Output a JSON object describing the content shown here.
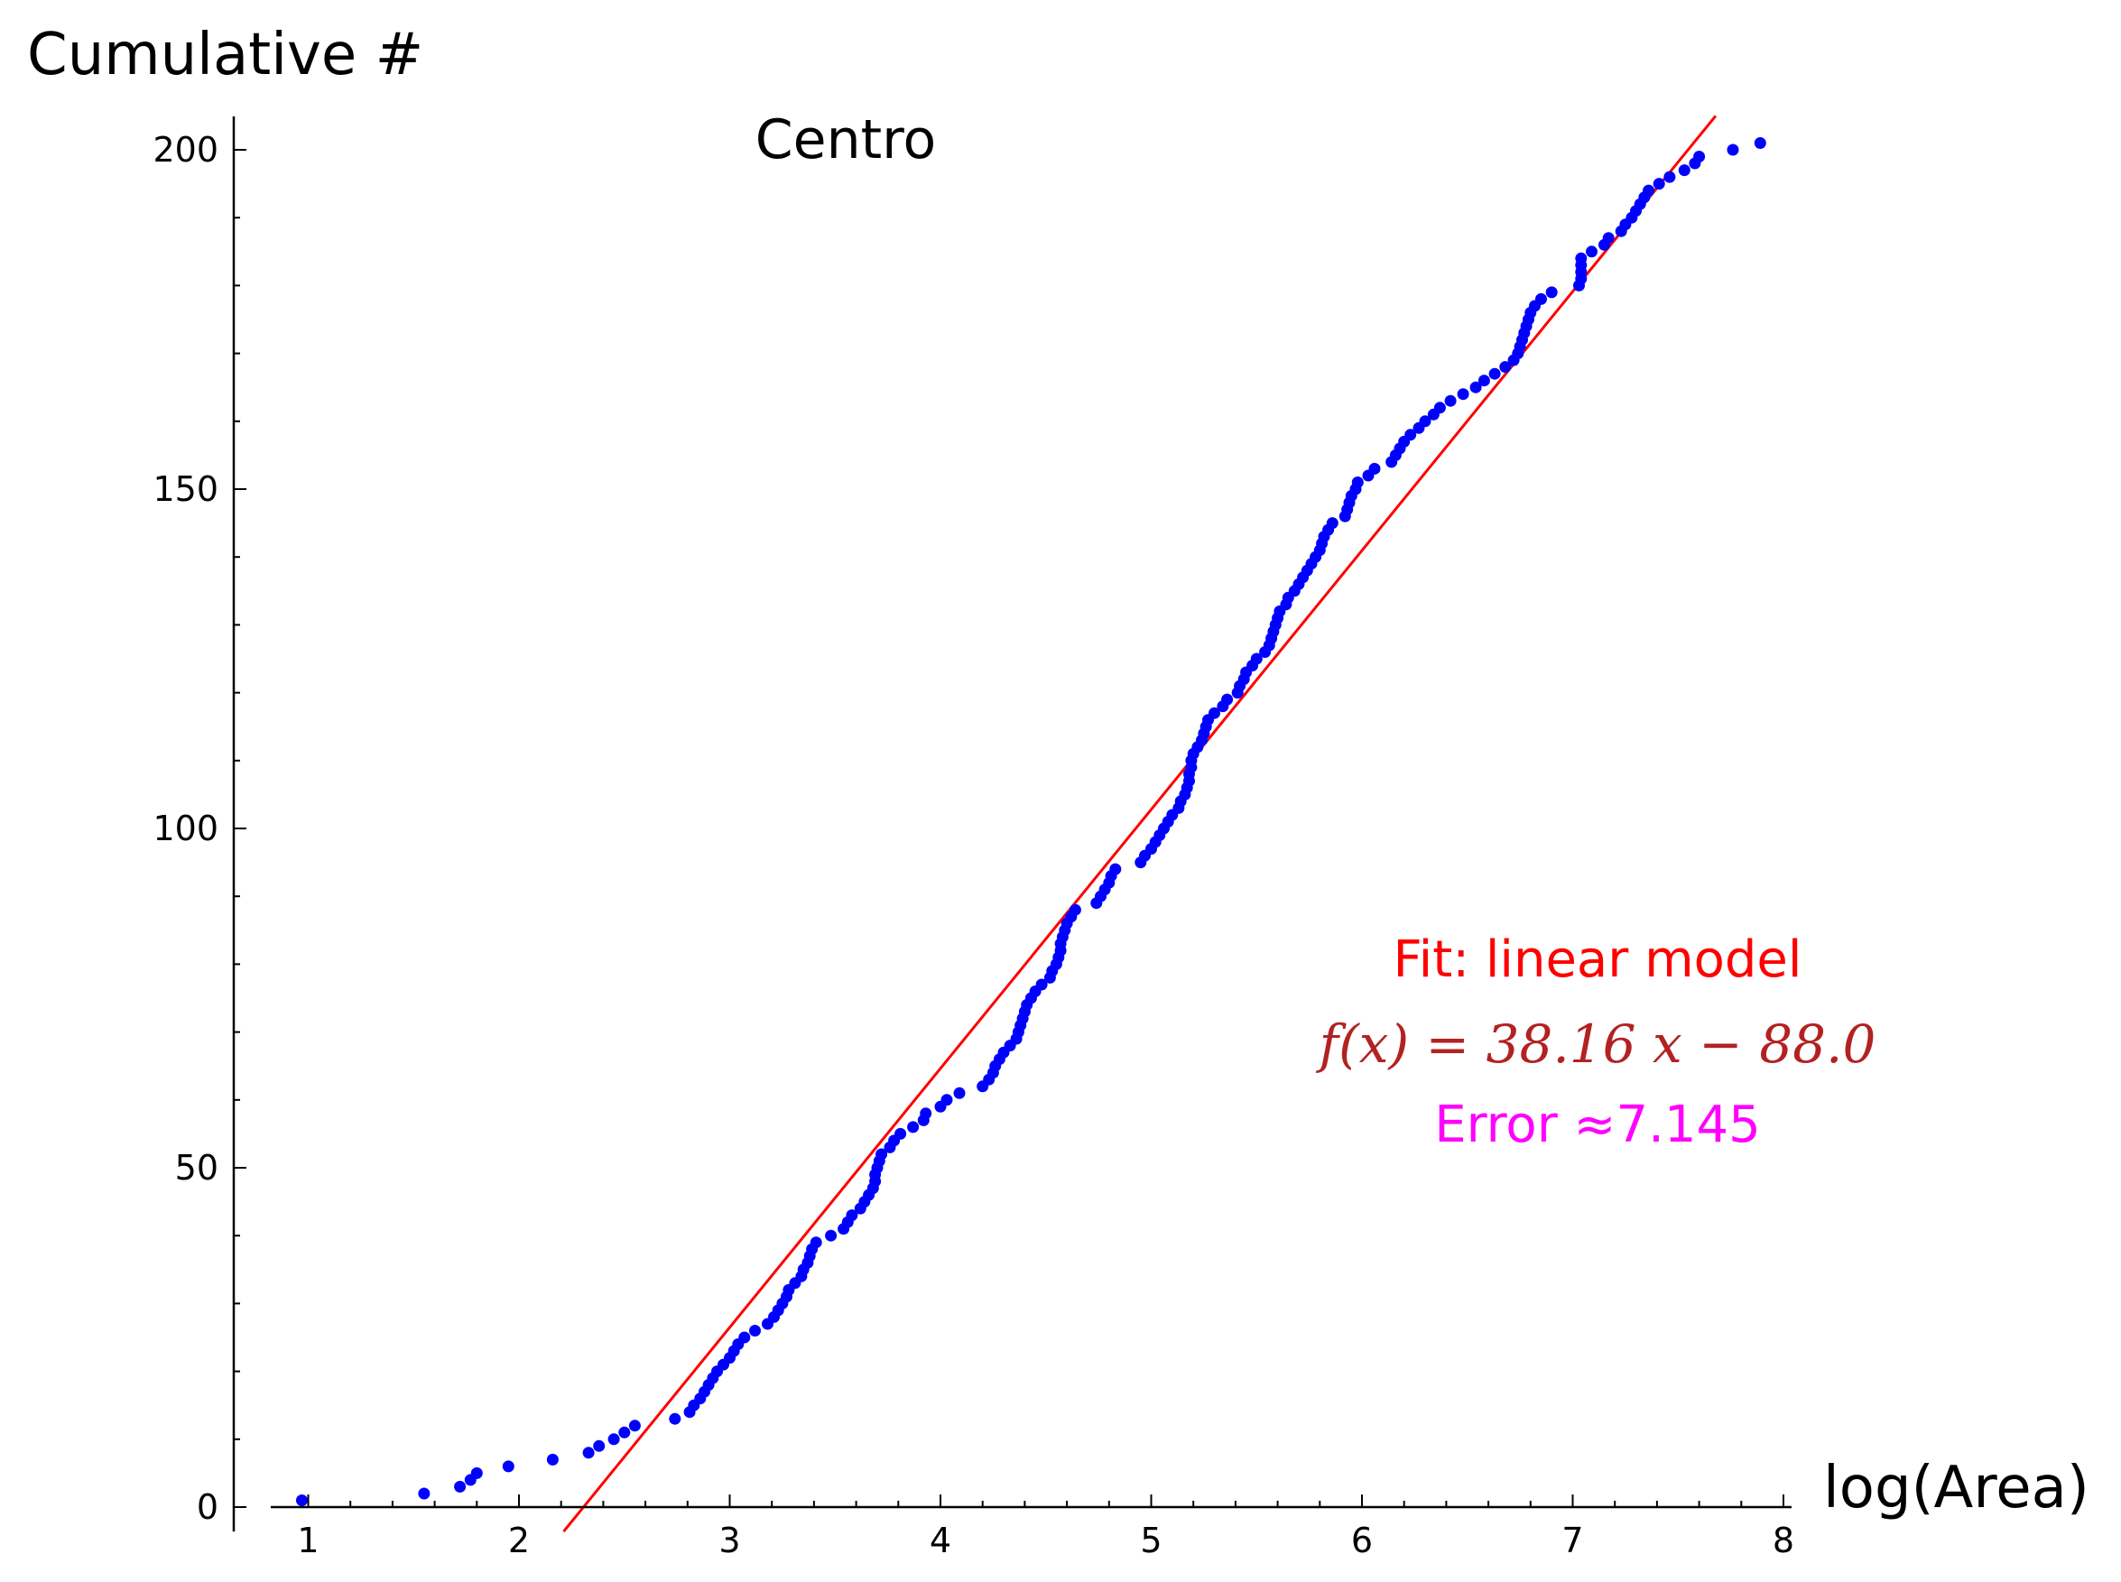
{
  "chart_data": {
    "type": "scatter",
    "title": "Centro",
    "xlabel": "log(Area)",
    "ylabel": "Cumulative #",
    "xlim": [
      0.8,
      8.05
    ],
    "ylim": [
      -3,
      205
    ],
    "x_ticks": [
      1,
      2,
      3,
      4,
      5,
      6,
      7,
      8
    ],
    "y_ticks": [
      0,
      50,
      100,
      150,
      200
    ],
    "grid": false,
    "series": [
      {
        "color": "#0000ff",
        "points": [
          [
            0.97,
            1
          ],
          [
            1.55,
            2
          ],
          [
            1.72,
            3
          ],
          [
            1.77,
            4
          ],
          [
            1.8,
            5
          ],
          [
            1.95,
            6
          ],
          [
            2.16,
            7
          ],
          [
            2.33,
            8
          ],
          [
            2.38,
            9
          ],
          [
            2.45,
            10
          ],
          [
            2.5,
            11
          ],
          [
            2.55,
            12
          ],
          [
            2.74,
            13
          ],
          [
            2.81,
            14
          ],
          [
            2.83,
            15
          ],
          [
            2.86,
            16
          ],
          [
            2.88,
            17
          ],
          [
            2.9,
            18
          ],
          [
            2.92,
            19
          ],
          [
            2.94,
            20
          ],
          [
            2.97,
            21
          ],
          [
            3.0,
            22
          ],
          [
            3.02,
            23
          ],
          [
            3.04,
            24
          ],
          [
            3.07,
            25
          ],
          [
            3.12,
            26
          ],
          [
            3.18,
            27
          ],
          [
            3.21,
            28
          ],
          [
            3.23,
            29
          ],
          [
            3.25,
            30
          ],
          [
            3.27,
            31
          ],
          [
            3.28,
            32
          ],
          [
            3.31,
            33
          ],
          [
            3.34,
            34
          ],
          [
            3.35,
            35
          ],
          [
            3.37,
            36
          ],
          [
            3.38,
            37
          ],
          [
            3.39,
            38
          ],
          [
            3.41,
            39
          ],
          [
            3.48,
            40
          ],
          [
            3.54,
            41
          ],
          [
            3.56,
            42
          ],
          [
            3.58,
            43
          ],
          [
            3.62,
            44
          ],
          [
            3.64,
            45
          ],
          [
            3.66,
            46
          ],
          [
            3.68,
            47
          ],
          [
            3.69,
            48
          ],
          [
            3.69,
            49
          ],
          [
            3.7,
            50
          ],
          [
            3.71,
            51
          ],
          [
            3.72,
            52
          ],
          [
            3.76,
            53
          ],
          [
            3.78,
            54
          ],
          [
            3.81,
            55
          ],
          [
            3.87,
            56
          ],
          [
            3.92,
            57
          ],
          [
            3.93,
            58
          ],
          [
            4.0,
            59
          ],
          [
            4.03,
            60
          ],
          [
            4.09,
            61
          ],
          [
            4.2,
            62
          ],
          [
            4.23,
            63
          ],
          [
            4.25,
            64
          ],
          [
            4.26,
            65
          ],
          [
            4.28,
            66
          ],
          [
            4.3,
            67
          ],
          [
            4.33,
            68
          ],
          [
            4.36,
            69
          ],
          [
            4.37,
            70
          ],
          [
            4.38,
            71
          ],
          [
            4.39,
            72
          ],
          [
            4.4,
            73
          ],
          [
            4.41,
            74
          ],
          [
            4.43,
            75
          ],
          [
            4.45,
            76
          ],
          [
            4.48,
            77
          ],
          [
            4.52,
            78
          ],
          [
            4.53,
            79
          ],
          [
            4.55,
            80
          ],
          [
            4.56,
            81
          ],
          [
            4.57,
            82
          ],
          [
            4.57,
            83
          ],
          [
            4.58,
            84
          ],
          [
            4.59,
            85
          ],
          [
            4.6,
            86
          ],
          [
            4.62,
            87
          ],
          [
            4.64,
            88
          ],
          [
            4.74,
            89
          ],
          [
            4.76,
            90
          ],
          [
            4.78,
            91
          ],
          [
            4.8,
            92
          ],
          [
            4.81,
            93
          ],
          [
            4.83,
            94
          ],
          [
            4.95,
            95
          ],
          [
            4.97,
            96
          ],
          [
            5.0,
            97
          ],
          [
            5.02,
            98
          ],
          [
            5.04,
            99
          ],
          [
            5.06,
            100
          ],
          [
            5.08,
            101
          ],
          [
            5.1,
            102
          ],
          [
            5.13,
            103
          ],
          [
            5.14,
            104
          ],
          [
            5.16,
            105
          ],
          [
            5.17,
            106
          ],
          [
            5.18,
            107
          ],
          [
            5.18,
            108
          ],
          [
            5.19,
            109
          ],
          [
            5.19,
            110
          ],
          [
            5.2,
            111
          ],
          [
            5.22,
            112
          ],
          [
            5.24,
            113
          ],
          [
            5.25,
            114
          ],
          [
            5.26,
            115
          ],
          [
            5.27,
            116
          ],
          [
            5.3,
            117
          ],
          [
            5.34,
            118
          ],
          [
            5.36,
            119
          ],
          [
            5.41,
            120
          ],
          [
            5.42,
            121
          ],
          [
            5.44,
            122
          ],
          [
            5.45,
            123
          ],
          [
            5.48,
            124
          ],
          [
            5.5,
            125
          ],
          [
            5.54,
            126
          ],
          [
            5.56,
            127
          ],
          [
            5.57,
            128
          ],
          [
            5.58,
            129
          ],
          [
            5.59,
            130
          ],
          [
            5.6,
            131
          ],
          [
            5.61,
            132
          ],
          [
            5.64,
            133
          ],
          [
            5.65,
            134
          ],
          [
            5.68,
            135
          ],
          [
            5.7,
            136
          ],
          [
            5.72,
            137
          ],
          [
            5.74,
            138
          ],
          [
            5.76,
            139
          ],
          [
            5.78,
            140
          ],
          [
            5.8,
            141
          ],
          [
            5.81,
            142
          ],
          [
            5.82,
            143
          ],
          [
            5.84,
            144
          ],
          [
            5.86,
            145
          ],
          [
            5.92,
            146
          ],
          [
            5.93,
            147
          ],
          [
            5.94,
            148
          ],
          [
            5.95,
            149
          ],
          [
            5.97,
            150
          ],
          [
            5.98,
            151
          ],
          [
            6.03,
            152
          ],
          [
            6.06,
            153
          ],
          [
            6.14,
            154
          ],
          [
            6.16,
            155
          ],
          [
            6.18,
            156
          ],
          [
            6.2,
            157
          ],
          [
            6.23,
            158
          ],
          [
            6.27,
            159
          ],
          [
            6.3,
            160
          ],
          [
            6.34,
            161
          ],
          [
            6.37,
            162
          ],
          [
            6.42,
            163
          ],
          [
            6.48,
            164
          ],
          [
            6.54,
            165
          ],
          [
            6.58,
            166
          ],
          [
            6.63,
            167
          ],
          [
            6.68,
            168
          ],
          [
            6.72,
            169
          ],
          [
            6.74,
            170
          ],
          [
            6.75,
            171
          ],
          [
            6.76,
            172
          ],
          [
            6.77,
            173
          ],
          [
            6.78,
            174
          ],
          [
            6.79,
            175
          ],
          [
            6.8,
            176
          ],
          [
            6.82,
            177
          ],
          [
            6.85,
            178
          ],
          [
            6.9,
            179
          ],
          [
            7.03,
            180
          ],
          [
            7.04,
            181
          ],
          [
            7.04,
            182
          ],
          [
            7.04,
            183
          ],
          [
            7.04,
            184
          ],
          [
            7.09,
            185
          ],
          [
            7.15,
            186
          ],
          [
            7.17,
            187
          ],
          [
            7.23,
            188
          ],
          [
            7.25,
            189
          ],
          [
            7.28,
            190
          ],
          [
            7.3,
            191
          ],
          [
            7.32,
            192
          ],
          [
            7.34,
            193
          ],
          [
            7.36,
            194
          ],
          [
            7.41,
            195
          ],
          [
            7.46,
            196
          ],
          [
            7.53,
            197
          ],
          [
            7.58,
            198
          ],
          [
            7.6,
            199
          ],
          [
            7.76,
            200
          ],
          [
            7.89,
            201
          ]
        ]
      },
      {
        "color": "#ff0000",
        "type": "line",
        "slope": 38.16,
        "intercept": -88.0
      }
    ],
    "annotations": {
      "fit_label": "Fit: linear model",
      "formula": "f(x) = 38.16 x − 88.0",
      "error": "Error ≈7.145"
    }
  }
}
